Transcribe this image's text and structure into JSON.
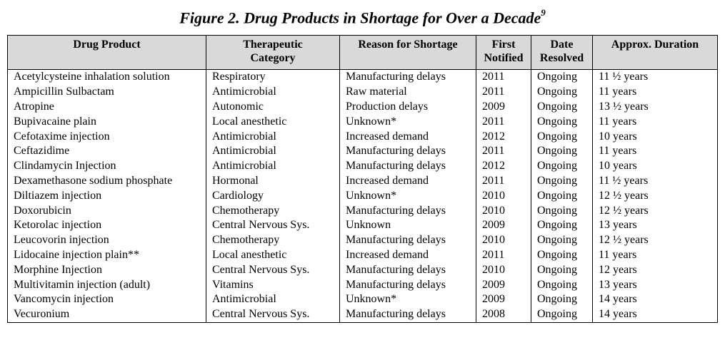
{
  "figure": {
    "title": "Figure 2. Drug Products in Shortage for Over a Decade",
    "footnote_ref": "9"
  },
  "table": {
    "headers": {
      "drug": "Drug Product",
      "category_1": "Therapeutic",
      "category_2": "Category",
      "reason": "Reason for Shortage",
      "first_1": "First",
      "first_2": "Notified",
      "date_1": "Date",
      "date_2": "Resolved",
      "duration": "Approx. Duration"
    },
    "rows": [
      {
        "drug": "Acetylcysteine inhalation solution",
        "category": "Respiratory",
        "reason": "Manufacturing delays",
        "first": "2011",
        "resolved": "Ongoing",
        "duration": "11 ½  years"
      },
      {
        "drug": "Ampicillin Sulbactam",
        "category": "Antimicrobial",
        "reason": "Raw material",
        "first": "2011",
        "resolved": "Ongoing",
        "duration": "11 years"
      },
      {
        "drug": "Atropine",
        "category": "Autonomic",
        "reason": "Production delays",
        "first": "2009",
        "resolved": "Ongoing",
        "duration": "13 ½ years"
      },
      {
        "drug": "Bupivacaine plain",
        "category": "Local anesthetic",
        "reason": "Unknown*",
        "first": "2011",
        "resolved": "Ongoing",
        "duration": "11 years"
      },
      {
        "drug": "Cefotaxime injection",
        "category": "Antimicrobial",
        "reason": "Increased demand",
        "first": "2012",
        "resolved": "Ongoing",
        "duration": "10 years"
      },
      {
        "drug": "Ceftazidime",
        "category": "Antimicrobial",
        "reason": "Manufacturing delays",
        "first": "2011",
        "resolved": "Ongoing",
        "duration": "11 years"
      },
      {
        "drug": "Clindamycin Injection",
        "category": "Antimicrobial",
        "reason": "Manufacturing delays",
        "first": "2012",
        "resolved": "Ongoing",
        "duration": "10 years"
      },
      {
        "drug": "Dexamethasone sodium phosphate",
        "category": "Hormonal",
        "reason": "Increased demand",
        "first": "2011",
        "resolved": "Ongoing",
        "duration": "11 ½ years"
      },
      {
        "drug": "Diltiazem injection",
        "category": "Cardiology",
        "reason": "Unknown*",
        "first": "2010",
        "resolved": "Ongoing",
        "duration": "12 ½ years"
      },
      {
        "drug": "Doxorubicin",
        "category": "Chemotherapy",
        "reason": "Manufacturing delays",
        "first": "2010",
        "resolved": "Ongoing",
        "duration": "12 ½ years"
      },
      {
        "drug": "Ketorolac injection",
        "category": "Central Nervous Sys.",
        "reason": "Unknown",
        "first": "2009",
        "resolved": "Ongoing",
        "duration": "13 years"
      },
      {
        "drug": "Leucovorin injection",
        "category": "Chemotherapy",
        "reason": "Manufacturing delays",
        "first": "2010",
        "resolved": "Ongoing",
        "duration": "12 ½ years"
      },
      {
        "drug": "Lidocaine injection plain**",
        "category": "Local anesthetic",
        "reason": "Increased demand",
        "first": "2011",
        "resolved": "Ongoing",
        "duration": "11 years"
      },
      {
        "drug": "Morphine Injection",
        "category": "Central Nervous Sys.",
        "reason": "Manufacturing delays",
        "first": "2010",
        "resolved": "Ongoing",
        "duration": "12 years"
      },
      {
        "drug": "Multivitamin injection (adult)",
        "category": "Vitamins",
        "reason": "Manufacturing delays",
        "first": "2009",
        "resolved": "Ongoing",
        "duration": "13 years"
      },
      {
        "drug": "Vancomycin injection",
        "category": "Antimicrobial",
        "reason": "Unknown*",
        "first": "2009",
        "resolved": "Ongoing",
        "duration": "14 years"
      },
      {
        "drug": "Vecuronium",
        "category": "Central Nervous Sys.",
        "reason": "Manufacturing delays",
        "first": "2008",
        "resolved": "Ongoing",
        "duration": "14 years"
      }
    ]
  }
}
